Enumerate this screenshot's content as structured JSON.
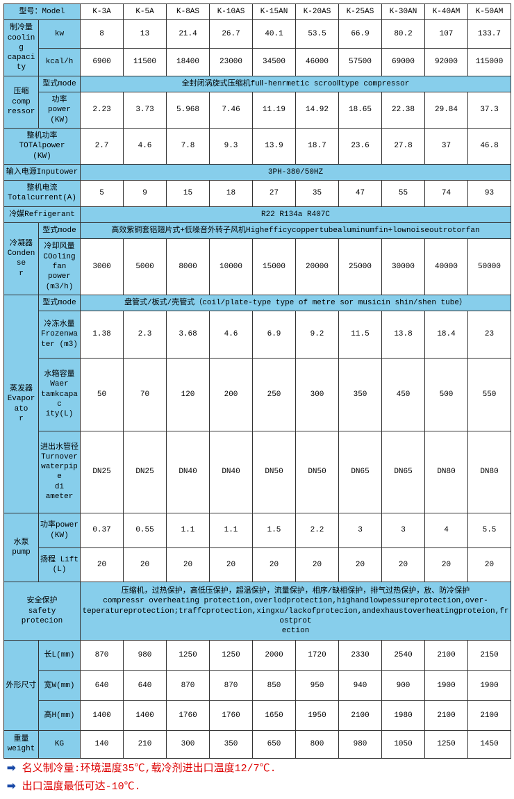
{
  "colors": {
    "header_bg": "#87CEEB",
    "border": "#333333",
    "text": "#000000",
    "note_text": "#d00000",
    "arrow": "#1a4aa8"
  },
  "col_widths": {
    "c0": 50,
    "c1": 60,
    "data": 62
  },
  "model": {
    "label": "型号：Model",
    "values": [
      "K-3A",
      "K-5A",
      "K-8AS",
      "K-10AS",
      "K-15AN",
      "K-20AS",
      "K-25AS",
      "K-30AN",
      "K-40AM",
      "K-50AM"
    ]
  },
  "cooling_capacity": {
    "label": "制冷量\ncooling\ncapacity",
    "kw": {
      "label": "kw",
      "values": [
        "8",
        "13",
        "21.4",
        "26.7",
        "40.1",
        "53.5",
        "66.9",
        "80.2",
        "107",
        "133.7"
      ]
    },
    "kcal": {
      "label": "kcal/h",
      "values": [
        "6900",
        "11500",
        "18400",
        "23000",
        "34500",
        "46000",
        "57500",
        "69000",
        "92000",
        "115000"
      ]
    }
  },
  "compressor": {
    "label": "压缩\ncomp\nressor",
    "mode": {
      "label": "型式mode",
      "text": "全封闭涡旋式压缩机fuⅡ-henrmetic scrooⅡtype compressor"
    },
    "power": {
      "label": "功率\npower\n(KW)",
      "values": [
        "2.23",
        "3.73",
        "5.968",
        "7.46",
        "11.19",
        "14.92",
        "18.65",
        "22.38",
        "29.84",
        "37.3"
      ]
    }
  },
  "total_power": {
    "label": "整机功率\nTOTAlpower\n(KW)",
    "values": [
      "2.7",
      "4.6",
      "7.8",
      "9.3",
      "13.9",
      "18.7",
      "23.6",
      "27.8",
      "37",
      "46.8"
    ]
  },
  "input_power": {
    "label": "输入电源Inputower",
    "text": "3PH-380/50HZ"
  },
  "total_current": {
    "label": "整机电流\nTotalcurrent(A)",
    "values": [
      "5",
      "9",
      "15",
      "18",
      "27",
      "35",
      "47",
      "55",
      "74",
      "93"
    ]
  },
  "refrigerant": {
    "label": "冷媒Refrigerant",
    "text": "R22 R134a R407C"
  },
  "condenser": {
    "label": "冷凝器\nCondense\nr",
    "mode": {
      "label": "型式mode",
      "text": "高效紫铜套铝翅片式+低噪音外转子风机Highefficycoppertubealuminumfin+lownoiseoutrotorfan"
    },
    "fan_power": {
      "label": "冷却风量\nCOoling\nfan power\n(m3/h)",
      "values": [
        "3000",
        "5000",
        "8000",
        "10000",
        "15000",
        "20000",
        "25000",
        "30000",
        "40000",
        "50000"
      ]
    }
  },
  "evaporator": {
    "label": "蒸发器\nEvaporato\nr",
    "mode": {
      "label": "型式mode",
      "text": "盘管式/板式/壳管式（coil/plate-type type of metre sor musicin shin/shen tube）"
    },
    "frozen_water": {
      "label": "冷冻水量\nFrozenwa\nter (m3)",
      "values": [
        "1.38",
        "2.3",
        "3.68",
        "4.6",
        "6.9",
        "9.2",
        "11.5",
        "13.8",
        "18.4",
        "23"
      ]
    },
    "tank_capacity": {
      "label": "水箱容量\nWaer\ntamkcapac\nity(L)",
      "values": [
        "50",
        "70",
        "120",
        "200",
        "250",
        "300",
        "350",
        "450",
        "500",
        "550"
      ]
    },
    "pipe_diameter": {
      "label": "进出水管径\nTurnover\nwaterpipe\ndi ameter",
      "values": [
        "DN25",
        "DN25",
        "DN40",
        "DN40",
        "DN50",
        "DN50",
        "DN65",
        "DN65",
        "DN80",
        "DN80"
      ]
    }
  },
  "pump": {
    "label": "水泵\npump",
    "power": {
      "label": "功率power\n(KW)",
      "values": [
        "0.37",
        "0.55",
        "1.1",
        "1.1",
        "1.5",
        "2.2",
        "3",
        "3",
        "4",
        "5.5"
      ]
    },
    "lift": {
      "label": "扬程 Lift\n(L)",
      "values": [
        "20",
        "20",
        "20",
        "20",
        "20",
        "20",
        "20",
        "20",
        "20",
        "20"
      ]
    }
  },
  "safety": {
    "label": "安全保护\nsafety protecion",
    "text": "压缩机，过热保护，高低压保护，超温保护，流量保护，相序/缺相保护，排气过热保护，放、防冷保护\ncompressr overheating protection,overlodprotection,highandlowpessureprotection,over-\nteperatureprotection;traffcprotection,xingxu/lackofprotecion,andexhaustoverheatingproteion,frostprot\nection"
  },
  "dimensions": {
    "label": "外形尺寸",
    "length": {
      "label": "长L(mm)",
      "values": [
        "870",
        "980",
        "1250",
        "1250",
        "2000",
        "1720",
        "2330",
        "2540",
        "2100",
        "2150"
      ]
    },
    "width": {
      "label": "宽W(mm)",
      "values": [
        "640",
        "640",
        "870",
        "870",
        "850",
        "950",
        "940",
        "900",
        "1900",
        "1900"
      ]
    },
    "height": {
      "label": "高H(mm)",
      "values": [
        "1400",
        "1400",
        "1760",
        "1760",
        "1650",
        "1950",
        "2100",
        "1980",
        "2100",
        "2100"
      ]
    }
  },
  "weight": {
    "label": "重量\nweight",
    "unit": "KG",
    "values": [
      "140",
      "210",
      "300",
      "350",
      "650",
      "800",
      "980",
      "1050",
      "1250",
      "1450"
    ]
  },
  "notes": {
    "line1": "名义制冷量:环境温度35℃,载冷剂进出口温度12/7℃.",
    "line2": "出口温度最低可达-10℃."
  }
}
